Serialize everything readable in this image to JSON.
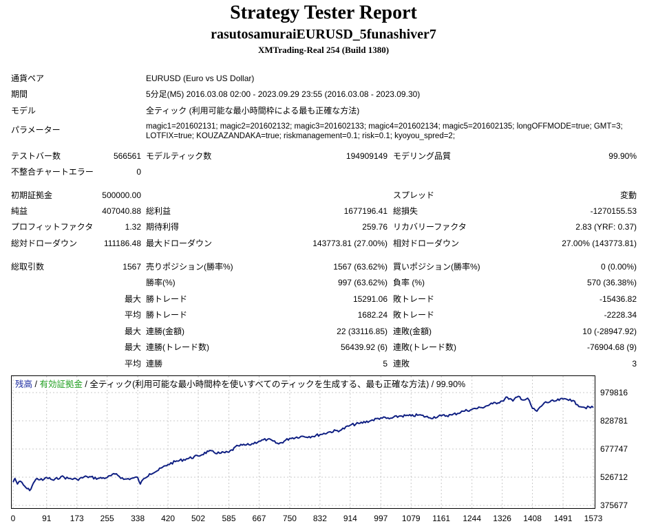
{
  "header": {
    "title": "Strategy Tester Report",
    "subtitle": "rasutosamuraiEURUSD_5funashiver7",
    "server": "XMTrading-Real 254 (Build 1380)"
  },
  "info": {
    "symbol_label": "通貨ペア",
    "symbol_value": "EURUSD (Euro vs US Dollar)",
    "period_label": "期間",
    "period_value": "5分足(M5) 2016.03.08 02:00 - 2023.09.29 23:55 (2016.03.08 - 2023.09.30)",
    "model_label": "モデル",
    "model_value": "全ティック (利用可能な最小時間枠による最も正確な方法)",
    "params_label": "パラメーター",
    "params_value": "magic1=201602131; magic2=201602132; magic3=201602133; magic4=201602134; magic5=201602135; longOFFMODE=true; GMT=3; LOTFIX=true; KOUZAZANDAKA=true; riskmanagement=0.1; risk=0.1; kyoyou_spred=2;"
  },
  "stats": {
    "bars_label": "テストバー数",
    "bars_value": "566561",
    "ticks_label": "モデルティック数",
    "ticks_value": "194909149",
    "quality_label": "モデリング品質",
    "quality_value": "99.90%",
    "mismatch_label": "不整合チャートエラー",
    "mismatch_value": "0",
    "deposit_label": "初期証拠金",
    "deposit_value": "500000.00",
    "spread_label": "スプレッド",
    "spread_value": "変動",
    "net_label": "純益",
    "net_value": "407040.88",
    "gross_profit_label": "総利益",
    "gross_profit_value": "1677196.41",
    "gross_loss_label": "総損失",
    "gross_loss_value": "-1270155.53",
    "pf_label": "プロフィットファクタ",
    "pf_value": "1.32",
    "expected_label": "期待利得",
    "expected_value": "259.76",
    "recovery_label": "リカバリーファクタ",
    "recovery_value": "2.83 (YRF: 0.37)",
    "abs_dd_label": "総対ドローダウン",
    "abs_dd_value": "111186.48",
    "max_dd_label": "最大ドローダウン",
    "max_dd_value": "143773.81 (27.00%)",
    "rel_dd_label": "相対ドローダウン",
    "rel_dd_value": "27.00% (143773.81)",
    "trades_label": "総取引数",
    "trades_value": "1567",
    "short_label": "売りポジション(勝率%)",
    "short_value": "1567 (63.62%)",
    "long_label": "買いポジション(勝率%)",
    "long_value": "0 (0.00%)",
    "win_pct_label": "勝率(%)",
    "win_pct_value": "997 (63.62%)",
    "loss_pct_label": "負率 (%)",
    "loss_pct_value": "570 (36.38%)",
    "largest_prefix": "最大",
    "largest_win_label": "勝トレード",
    "largest_win_value": "15291.06",
    "largest_loss_label": "敗トレード",
    "largest_loss_value": "-15436.82",
    "average_prefix": "平均",
    "avg_win_label": "勝トレード",
    "avg_win_value": "1682.24",
    "avg_loss_label": "敗トレード",
    "avg_loss_value": "-2228.34",
    "max1_prefix": "最大",
    "max_cons_win_label": "連勝(金額)",
    "max_cons_win_value": "22 (33116.85)",
    "max_cons_loss_label": "連敗(金額)",
    "max_cons_loss_value": "10 (-28947.92)",
    "max2_prefix": "最大",
    "max_cons_profit_label": "連勝(トレード数)",
    "max_cons_profit_value": "56439.92 (6)",
    "max_cons_lossamt_label": "連敗(トレード数)",
    "max_cons_lossamt_value": "-76904.68 (9)",
    "avg2_prefix": "平均",
    "avg_cons_win_label": "連勝",
    "avg_cons_win_value": "5",
    "avg_cons_loss_label": "連敗",
    "avg_cons_loss_value": "3"
  },
  "legend": {
    "balance": "残高",
    "sep1": " / ",
    "equity": "有効証拠金",
    "sep2": " / ",
    "rest": "全ティック(利用可能な最小時間枠を使いすべてのティックを生成する、最も正確な方法) / 99.90%"
  },
  "colors": {
    "balance": "#0f1f82",
    "equity": "#22a022",
    "grid": "#c8c8c8"
  },
  "chart_data": {
    "type": "line",
    "title": "",
    "xlabel": "",
    "ylabel": "",
    "x_ticks": [
      "0",
      "91",
      "173",
      "255",
      "338",
      "420",
      "502",
      "585",
      "667",
      "750",
      "832",
      "914",
      "997",
      "1079",
      "1161",
      "1244",
      "1326",
      "1408",
      "1491",
      "1573"
    ],
    "y_ticks": [
      "979816",
      "828781",
      "677747",
      "526712",
      "375677"
    ],
    "xlim": [
      0,
      1573
    ],
    "ylim": [
      375677,
      979816
    ],
    "series": [
      {
        "values_key": "balance",
        "x": [
          0,
          5,
          12,
          20,
          28,
          35,
          45,
          55,
          65,
          80,
          91,
          110,
          130,
          150,
          173,
          200,
          230,
          255,
          280,
          300,
          320,
          338,
          345,
          355,
          370,
          390,
          420,
          440,
          470,
          502,
          530,
          560,
          585,
          610,
          640,
          667,
          690,
          720,
          750,
          780,
          810,
          832,
          860,
          890,
          914,
          940,
          970,
          997,
          1020,
          1050,
          1079,
          1100,
          1130,
          1161,
          1190,
          1220,
          1244,
          1270,
          1300,
          1326,
          1340,
          1355,
          1370,
          1385,
          1395,
          1408,
          1420,
          1440,
          1470,
          1491,
          1510,
          1530,
          1550,
          1573
        ],
        "y": [
          500000,
          520000,
          490000,
          505000,
          485000,
          470000,
          455000,
          495000,
          520000,
          510000,
          525000,
          510000,
          530000,
          520000,
          515000,
          530000,
          520000,
          525000,
          545000,
          515000,
          520000,
          525000,
          490000,
          520000,
          545000,
          560000,
          595000,
          610000,
          625000,
          640000,
          665000,
          655000,
          660000,
          695000,
          700000,
          720000,
          730000,
          705000,
          735000,
          745000,
          745000,
          755000,
          770000,
          780000,
          805000,
          815000,
          830000,
          845000,
          840000,
          855000,
          855000,
          860000,
          845000,
          855000,
          860000,
          880000,
          890000,
          900000,
          920000,
          935000,
          955000,
          935000,
          960000,
          940000,
          950000,
          895000,
          880000,
          925000,
          935000,
          945000,
          945000,
          915000,
          900000,
          900000
        ]
      }
    ]
  }
}
